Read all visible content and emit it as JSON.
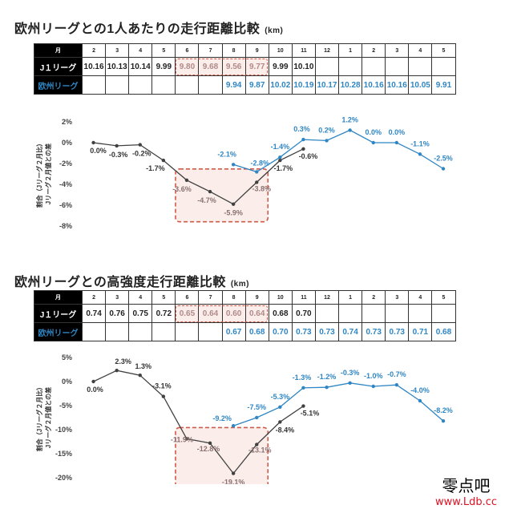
{
  "colors": {
    "j1": "#404040",
    "eu": "#2f86c4",
    "highlight": "#d05a4a",
    "highlight_fill": "#fbeeea"
  },
  "section1": {
    "title": "欧州リーグとの1人あたりの走行距離比較",
    "unit": "(km)",
    "table": {
      "month_header": "月",
      "months": [
        "2",
        "3",
        "4",
        "5",
        "6",
        "7",
        "8",
        "9",
        "10",
        "11",
        "12",
        "1",
        "2",
        "3",
        "4",
        "5"
      ],
      "j1_label": "J１リーグ",
      "eu_label": "欧州リーグ",
      "j1": [
        "10.16",
        "10.13",
        "10.14",
        "9.99",
        "9.80",
        "9.68",
        "9.56",
        "9.77",
        "9.99",
        "10.10",
        "",
        "",
        "",
        "",
        "",
        ""
      ],
      "eu": [
        "",
        "",
        "",
        "",
        "",
        "",
        "9.94",
        "9.87",
        "10.02",
        "10.19",
        "10.17",
        "10.28",
        "10.16",
        "10.16",
        "10.05",
        "9.91"
      ]
    }
  },
  "section2": {
    "title": "欧州リーグとの高強度走行距離比較",
    "unit": "(km)",
    "table": {
      "month_header": "月",
      "months": [
        "2",
        "3",
        "4",
        "5",
        "6",
        "7",
        "8",
        "9",
        "10",
        "11",
        "12",
        "1",
        "2",
        "3",
        "4",
        "5"
      ],
      "j1_label": "J１リーグ",
      "eu_label": "欧州リーグ",
      "j1": [
        "0.74",
        "0.76",
        "0.75",
        "0.72",
        "0.65",
        "0.64",
        "0.60",
        "0.64",
        "0.68",
        "0.70",
        "",
        "",
        "",
        "",
        "",
        ""
      ],
      "eu": [
        "",
        "",
        "",
        "",
        "",
        "",
        "0.67",
        "0.68",
        "0.70",
        "0.73",
        "0.73",
        "0.74",
        "0.73",
        "0.73",
        "0.71",
        "0.68"
      ]
    }
  },
  "chart_data": [
    {
      "type": "line",
      "ylabel": "割合（Jリーグ２月比）\nJリーグ２月値との差",
      "ylim": [
        -8,
        2
      ],
      "yticks": [
        "2%",
        "0%",
        "-2%",
        "-4%",
        "-6%",
        "-8%"
      ],
      "ytick_values": [
        2,
        0,
        -2,
        -4,
        -6,
        -8
      ],
      "categories": [
        "2",
        "3",
        "4",
        "5",
        "6",
        "7",
        "8",
        "9",
        "10",
        "11",
        "12",
        "1",
        "2",
        "3",
        "4",
        "5"
      ],
      "series": [
        {
          "color": "#404040",
          "values": [
            0.0,
            -0.3,
            -0.2,
            -1.7,
            -3.6,
            -4.7,
            -5.9,
            -3.8,
            -1.7,
            -0.6,
            null,
            null,
            null,
            null,
            null,
            null
          ],
          "labels": [
            "0.0%",
            "-0.3%",
            "-0.2%",
            "-1.7%",
            "-3.6%",
            "-4.7%",
            "-5.9%",
            "-3.8%",
            "-1.7%",
            "-0.6%",
            "",
            "",
            "",
            "",
            "",
            ""
          ]
        },
        {
          "color": "#2f86c4",
          "values": [
            null,
            null,
            null,
            null,
            null,
            null,
            -2.1,
            -2.8,
            -1.4,
            0.3,
            0.2,
            1.2,
            0.0,
            0.0,
            -1.1,
            -2.5
          ],
          "labels": [
            "",
            "",
            "",
            "",
            "",
            "",
            "-2.1%",
            "-2.8%",
            "-1.4%",
            "0.3%",
            "0.2%",
            "1.2%",
            "0.0%",
            "0.0%",
            "-1.1%",
            "-2.5%"
          ]
        }
      ],
      "highlight_range": [
        "6",
        "9"
      ]
    },
    {
      "type": "line",
      "ylabel": "割合（Jリーグ２月比）\nJリーグ２月値との差",
      "ylim": [
        -20,
        5
      ],
      "yticks": [
        "5%",
        "0%",
        "-5%",
        "-10%",
        "-15%",
        "-20%"
      ],
      "ytick_values": [
        5,
        0,
        -5,
        -10,
        -15,
        -20
      ],
      "categories": [
        "2",
        "3",
        "4",
        "5",
        "6",
        "7",
        "8",
        "9",
        "10",
        "11",
        "12",
        "1",
        "2",
        "3",
        "4",
        "5"
      ],
      "series": [
        {
          "color": "#404040",
          "values": [
            0.0,
            2.3,
            1.3,
            -3.1,
            -11.9,
            -12.8,
            -19.1,
            -13.1,
            -8.4,
            -5.1,
            null,
            null,
            null,
            null,
            null,
            null
          ],
          "labels": [
            "0.0%",
            "2.3%",
            "1.3%",
            "-3.1%",
            "-11.9%",
            "-12.8%",
            "-19.1%",
            "-13.1%",
            "-8.4%",
            "-5.1%",
            "",
            "",
            "",
            "",
            "",
            ""
          ]
        },
        {
          "color": "#2f86c4",
          "values": [
            null,
            null,
            null,
            null,
            null,
            null,
            -9.2,
            -7.5,
            -5.3,
            -1.3,
            -1.2,
            -0.3,
            -1.0,
            -0.7,
            -4.0,
            -8.2
          ],
          "labels": [
            "",
            "",
            "",
            "",
            "",
            "",
            "-9.2%",
            "-7.5%",
            "-5.3%",
            "-1.3%",
            "-1.2%",
            "-0.3%",
            "-1.0%",
            "-0.7%",
            "-4.0%",
            "-8.2%"
          ]
        }
      ],
      "highlight_range": [
        "6",
        "9"
      ]
    }
  ],
  "watermark": {
    "line1": "零点吧",
    "line2": "www.Ldb.cc"
  }
}
